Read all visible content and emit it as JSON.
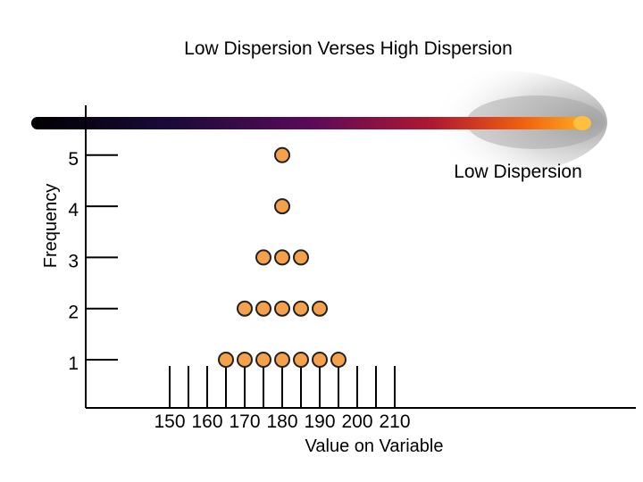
{
  "chart_data": {
    "type": "scatter",
    "title": "Low Dispersion Verses High Dispersion",
    "xlabel": "Value on Variable",
    "ylabel": "Frequency",
    "x_ticks": [
      150,
      160,
      170,
      180,
      190,
      200,
      210
    ],
    "y_ticks": [
      1,
      2,
      3,
      4,
      5
    ],
    "annotation": "Low Dispersion",
    "marker_color": "#f5a04a",
    "marker_edge_color": "#222222",
    "points": [
      {
        "x": 165,
        "y": 1
      },
      {
        "x": 170,
        "y": 1
      },
      {
        "x": 175,
        "y": 1
      },
      {
        "x": 180,
        "y": 1
      },
      {
        "x": 185,
        "y": 1
      },
      {
        "x": 190,
        "y": 1
      },
      {
        "x": 195,
        "y": 1
      },
      {
        "x": 170,
        "y": 2
      },
      {
        "x": 175,
        "y": 2
      },
      {
        "x": 180,
        "y": 2
      },
      {
        "x": 185,
        "y": 2
      },
      {
        "x": 190,
        "y": 2
      },
      {
        "x": 175,
        "y": 3
      },
      {
        "x": 180,
        "y": 3
      },
      {
        "x": 185,
        "y": 3
      },
      {
        "x": 180,
        "y": 4
      },
      {
        "x": 180,
        "y": 5
      }
    ]
  }
}
